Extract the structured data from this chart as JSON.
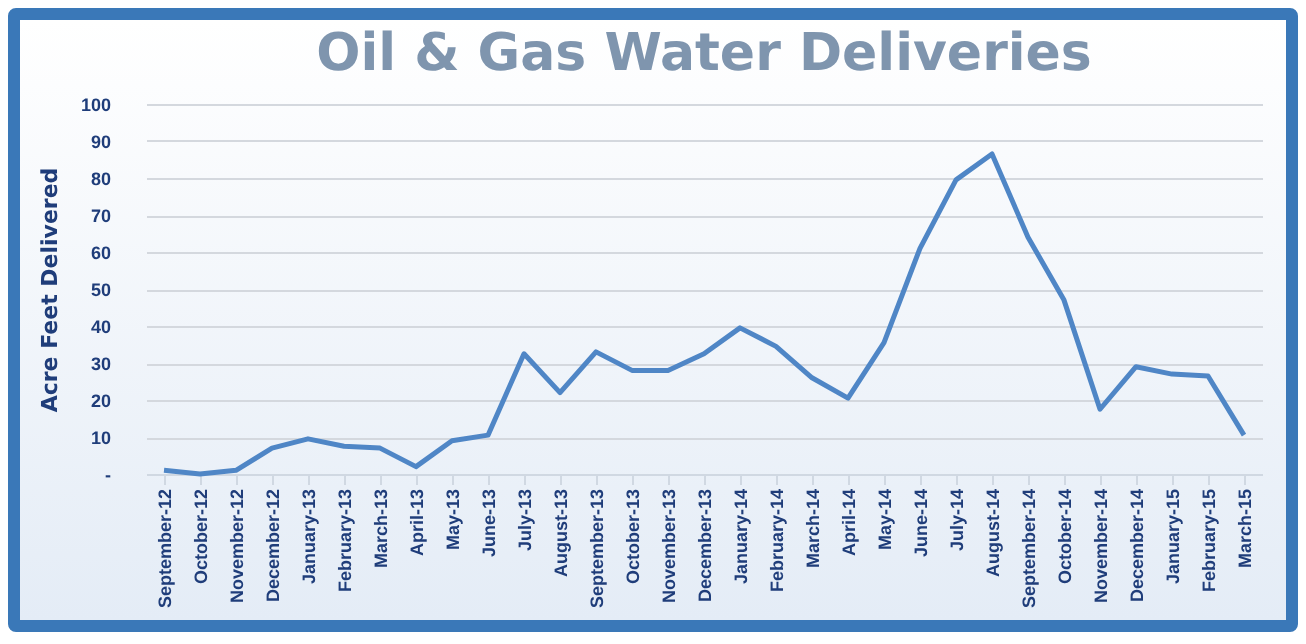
{
  "chart_data": {
    "type": "line",
    "title": "Oil & Gas Water Deliveries",
    "ylabel": "Acre Feet Delivered",
    "categories": [
      "September-12",
      "October-12",
      "November-12",
      "December-12",
      "January-13",
      "February-13",
      "March-13",
      "April-13",
      "May-13",
      "June-13",
      "July-13",
      "August-13",
      "September-13",
      "October-13",
      "November-13",
      "December-13",
      "January-14",
      "February-14",
      "March-14",
      "April-14",
      "May-14",
      "June-14",
      "July-14",
      "August-14",
      "September-14",
      "October-14",
      "November-14",
      "December-14",
      "January-15",
      "February-15",
      "March-15"
    ],
    "series": [
      {
        "color": "#4f86c6",
        "values": [
          1,
          0,
          1,
          7,
          9.5,
          7.5,
          7,
          2,
          9,
          10.5,
          32.5,
          22,
          33,
          28,
          28,
          32.5,
          39.5,
          34.5,
          26,
          20.5,
          35.5,
          61,
          79.5,
          86.5,
          64,
          47,
          17.5,
          29,
          27,
          26.5,
          10.5
        ]
      }
    ],
    "ylim": [
      0,
      100
    ],
    "yticks": [
      {
        "value": 0,
        "label": "-"
      },
      10,
      20,
      30,
      40,
      50,
      60,
      70,
      80,
      90,
      100
    ],
    "grid": "y",
    "legend": false,
    "marker": "none",
    "line_style": "solid"
  }
}
